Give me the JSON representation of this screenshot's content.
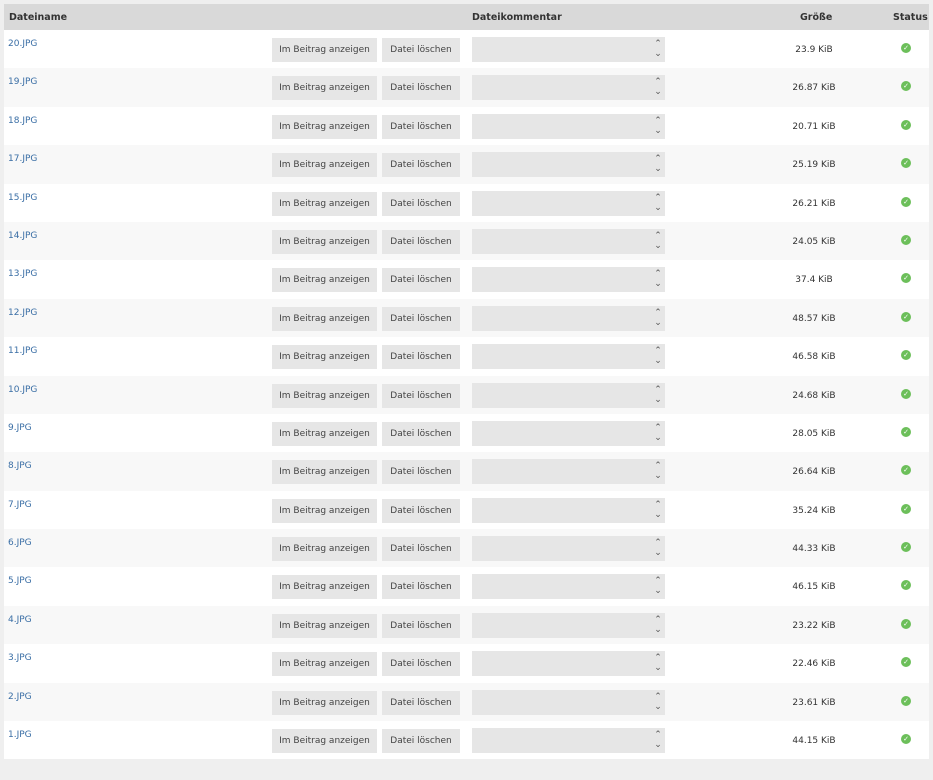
{
  "header": {
    "filename": "Dateiname",
    "comment": "Dateikommentar",
    "size": "Größe",
    "status": "Status"
  },
  "labels": {
    "show_in_post": "Im Beitrag anzeigen",
    "delete_file": "Datei löschen"
  },
  "status_color": "#6cbf5a",
  "files": [
    {
      "name": "20.JPG",
      "size": "23.9 KiB",
      "status": "ok"
    },
    {
      "name": "19.JPG",
      "size": "26.87 KiB",
      "status": "ok"
    },
    {
      "name": "18.JPG",
      "size": "20.71 KiB",
      "status": "ok"
    },
    {
      "name": "17.JPG",
      "size": "25.19 KiB",
      "status": "ok"
    },
    {
      "name": "15.JPG",
      "size": "26.21 KiB",
      "status": "ok"
    },
    {
      "name": "14.JPG",
      "size": "24.05 KiB",
      "status": "ok"
    },
    {
      "name": "13.JPG",
      "size": "37.4 KiB",
      "status": "ok"
    },
    {
      "name": "12.JPG",
      "size": "48.57 KiB",
      "status": "ok"
    },
    {
      "name": "11.JPG",
      "size": "46.58 KiB",
      "status": "ok"
    },
    {
      "name": "10.JPG",
      "size": "24.68 KiB",
      "status": "ok"
    },
    {
      "name": "9.JPG",
      "size": "28.05 KiB",
      "status": "ok"
    },
    {
      "name": "8.JPG",
      "size": "26.64 KiB",
      "status": "ok"
    },
    {
      "name": "7.JPG",
      "size": "35.24 KiB",
      "status": "ok"
    },
    {
      "name": "6.JPG",
      "size": "44.33 KiB",
      "status": "ok"
    },
    {
      "name": "5.JPG",
      "size": "46.15 KiB",
      "status": "ok"
    },
    {
      "name": "4.JPG",
      "size": "23.22 KiB",
      "status": "ok"
    },
    {
      "name": "3.JPG",
      "size": "22.46 KiB",
      "status": "ok"
    },
    {
      "name": "2.JPG",
      "size": "23.61 KiB",
      "status": "ok"
    },
    {
      "name": "1.JPG",
      "size": "44.15 KiB",
      "status": "ok"
    }
  ]
}
